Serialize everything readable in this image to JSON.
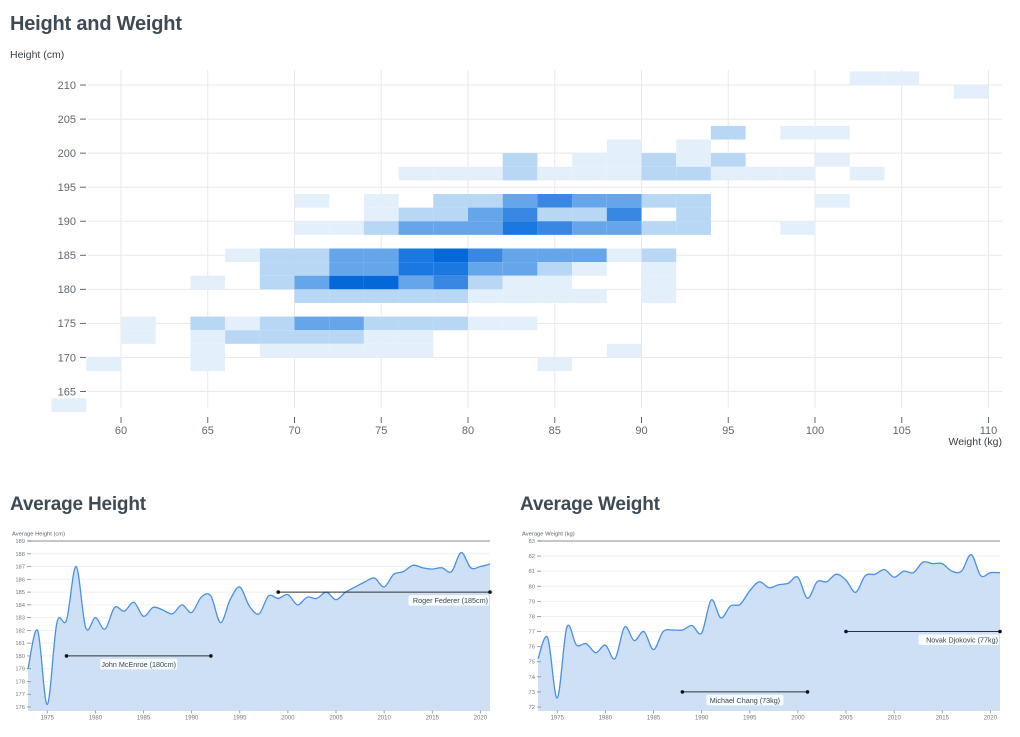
{
  "page": {
    "background": "#ffffff",
    "title_color": "#3e4a54"
  },
  "chart_data": [
    {
      "id": "height-weight",
      "type": "heatmap",
      "title": "Height and Weight",
      "xlabel": "Weight (kg)",
      "ylabel": "Height (cm)",
      "x_ticks": [
        60,
        65,
        70,
        75,
        80,
        85,
        90,
        95,
        100,
        105,
        110
      ],
      "y_ticks": [
        165,
        170,
        175,
        180,
        185,
        190,
        195,
        200,
        205,
        210
      ],
      "x_domain": [
        56,
        112
      ],
      "y_domain": [
        162,
        212
      ],
      "bin_size_kg": 2,
      "bin_size_cm": 2,
      "grid": true,
      "grid_color": "#e8e9ea",
      "tick_color": "#60686f",
      "palette": [
        "#e3f0fc",
        "#b7d7f5",
        "#65a6ea",
        "#3887e3",
        "#1b78e0",
        "#0568d9"
      ],
      "cells_format": "[weight_bin_start_kg, height_bin_start_cm, intensity_level_1_to_6]",
      "cells": [
        [
          102,
          210,
          1
        ],
        [
          104,
          210,
          1
        ],
        [
          108,
          208,
          1
        ],
        [
          94,
          202,
          2
        ],
        [
          98,
          202,
          1
        ],
        [
          100,
          202,
          1
        ],
        [
          88,
          200,
          1
        ],
        [
          92,
          200,
          1
        ],
        [
          82,
          198,
          2
        ],
        [
          86,
          198,
          1
        ],
        [
          88,
          198,
          1
        ],
        [
          90,
          198,
          2
        ],
        [
          92,
          198,
          1
        ],
        [
          94,
          198,
          2
        ],
        [
          100,
          198,
          1
        ],
        [
          76,
          196,
          1
        ],
        [
          78,
          196,
          1
        ],
        [
          80,
          196,
          1
        ],
        [
          82,
          196,
          2
        ],
        [
          84,
          196,
          1
        ],
        [
          86,
          196,
          1
        ],
        [
          88,
          196,
          1
        ],
        [
          90,
          196,
          2
        ],
        [
          92,
          196,
          2
        ],
        [
          94,
          196,
          1
        ],
        [
          96,
          196,
          1
        ],
        [
          98,
          196,
          1
        ],
        [
          102,
          196,
          1
        ],
        [
          70,
          192,
          1
        ],
        [
          74,
          192,
          1
        ],
        [
          78,
          192,
          2
        ],
        [
          80,
          192,
          2
        ],
        [
          82,
          192,
          3
        ],
        [
          84,
          192,
          4
        ],
        [
          86,
          192,
          3
        ],
        [
          88,
          192,
          3
        ],
        [
          90,
          192,
          2
        ],
        [
          92,
          192,
          2
        ],
        [
          100,
          192,
          1
        ],
        [
          74,
          190,
          1
        ],
        [
          76,
          190,
          2
        ],
        [
          78,
          190,
          2
        ],
        [
          80,
          190,
          3
        ],
        [
          82,
          190,
          4
        ],
        [
          84,
          190,
          2
        ],
        [
          86,
          190,
          2
        ],
        [
          88,
          190,
          4
        ],
        [
          92,
          190,
          2
        ],
        [
          70,
          188,
          1
        ],
        [
          72,
          188,
          1
        ],
        [
          74,
          188,
          2
        ],
        [
          76,
          188,
          3
        ],
        [
          78,
          188,
          3
        ],
        [
          80,
          188,
          3
        ],
        [
          82,
          188,
          5
        ],
        [
          84,
          188,
          4
        ],
        [
          86,
          188,
          3
        ],
        [
          88,
          188,
          3
        ],
        [
          90,
          188,
          2
        ],
        [
          92,
          188,
          2
        ],
        [
          98,
          188,
          1
        ],
        [
          66,
          184,
          1
        ],
        [
          68,
          184,
          2
        ],
        [
          70,
          184,
          2
        ],
        [
          72,
          184,
          3
        ],
        [
          74,
          184,
          3
        ],
        [
          76,
          184,
          5
        ],
        [
          78,
          184,
          6
        ],
        [
          80,
          184,
          4
        ],
        [
          82,
          184,
          3
        ],
        [
          84,
          184,
          3
        ],
        [
          86,
          184,
          3
        ],
        [
          88,
          184,
          1
        ],
        [
          90,
          184,
          2
        ],
        [
          68,
          182,
          2
        ],
        [
          70,
          182,
          2
        ],
        [
          72,
          182,
          3
        ],
        [
          74,
          182,
          3
        ],
        [
          76,
          182,
          5
        ],
        [
          78,
          182,
          5
        ],
        [
          80,
          182,
          3
        ],
        [
          82,
          182,
          3
        ],
        [
          84,
          182,
          2
        ],
        [
          86,
          182,
          1
        ],
        [
          90,
          182,
          1
        ],
        [
          64,
          180,
          1
        ],
        [
          68,
          180,
          2
        ],
        [
          70,
          180,
          3
        ],
        [
          72,
          180,
          6
        ],
        [
          74,
          180,
          6
        ],
        [
          76,
          180,
          3
        ],
        [
          78,
          180,
          4
        ],
        [
          80,
          180,
          2
        ],
        [
          82,
          180,
          1
        ],
        [
          84,
          180,
          1
        ],
        [
          90,
          180,
          1
        ],
        [
          70,
          178,
          2
        ],
        [
          72,
          178,
          2
        ],
        [
          74,
          178,
          2
        ],
        [
          76,
          178,
          2
        ],
        [
          78,
          178,
          2
        ],
        [
          80,
          178,
          1
        ],
        [
          82,
          178,
          1
        ],
        [
          84,
          178,
          1
        ],
        [
          86,
          178,
          1
        ],
        [
          90,
          178,
          1
        ],
        [
          60,
          174,
          1
        ],
        [
          64,
          174,
          2
        ],
        [
          66,
          174,
          1
        ],
        [
          68,
          174,
          2
        ],
        [
          70,
          174,
          3
        ],
        [
          72,
          174,
          3
        ],
        [
          74,
          174,
          2
        ],
        [
          76,
          174,
          2
        ],
        [
          78,
          174,
          2
        ],
        [
          80,
          174,
          1
        ],
        [
          82,
          174,
          1
        ],
        [
          60,
          172,
          1
        ],
        [
          64,
          172,
          1
        ],
        [
          66,
          172,
          2
        ],
        [
          68,
          172,
          2
        ],
        [
          70,
          172,
          2
        ],
        [
          72,
          172,
          2
        ],
        [
          74,
          172,
          1
        ],
        [
          76,
          172,
          1
        ],
        [
          64,
          170,
          1
        ],
        [
          68,
          170,
          1
        ],
        [
          70,
          170,
          1
        ],
        [
          72,
          170,
          1
        ],
        [
          74,
          170,
          1
        ],
        [
          76,
          170,
          1
        ],
        [
          88,
          170,
          1
        ],
        [
          58,
          168,
          1
        ],
        [
          64,
          168,
          1
        ],
        [
          84,
          168,
          1
        ],
        [
          56,
          162,
          1
        ]
      ]
    },
    {
      "id": "average-height",
      "type": "area",
      "title": "Average Height",
      "ylabel": "Average Height (cm)",
      "x_domain": [
        1973,
        2021
      ],
      "x_ticks": [
        1975,
        1980,
        1985,
        1990,
        1995,
        2000,
        2005,
        2010,
        2015,
        2020
      ],
      "y_ticks": [
        176,
        177,
        178,
        179,
        180,
        181,
        182,
        183,
        184,
        185,
        186,
        187,
        188,
        189
      ],
      "line_color": "#4a90e2",
      "fill_color": "#cde0f6",
      "top_line_color": "#b0b4b6",
      "values_start_year": 1973,
      "values": [
        179.0,
        182.0,
        176.2,
        182.6,
        182.8,
        187.0,
        182.2,
        183.0,
        182.1,
        183.8,
        183.5,
        184.2,
        183.1,
        183.8,
        183.6,
        183.3,
        184.0,
        183.4,
        184.6,
        184.7,
        182.6,
        184.4,
        185.4,
        183.9,
        183.3,
        184.7,
        184.5,
        184.8,
        184.0,
        184.6,
        184.5,
        185.0,
        184.4,
        185.0,
        185.4,
        185.8,
        186.1,
        185.4,
        186.4,
        186.6,
        187.1,
        186.9,
        186.8,
        186.9,
        186.6,
        188.1,
        186.9,
        187.0,
        187.2
      ],
      "annotations": [
        {
          "label": "John McEnroe (180cm)",
          "value": 180,
          "from": 1977,
          "to": 1992,
          "align": "center"
        },
        {
          "label": "Roger Federer (185cm)",
          "value": 185,
          "from": 1999,
          "to": 2021,
          "align": "right"
        }
      ]
    },
    {
      "id": "average-weight",
      "type": "area",
      "title": "Average Weight",
      "ylabel": "Average Weight (kg)",
      "x_domain": [
        1973,
        2021
      ],
      "x_ticks": [
        1975,
        1980,
        1985,
        1990,
        1995,
        2000,
        2005,
        2010,
        2015,
        2020
      ],
      "y_ticks": [
        72,
        73,
        74,
        75,
        76,
        77,
        78,
        79,
        80,
        81,
        82,
        83
      ],
      "line_color": "#4a90e2",
      "fill_color": "#cde0f6",
      "top_line_color": "#b0b4b6",
      "values_start_year": 1973,
      "values": [
        75.2,
        76.6,
        72.6,
        77.3,
        76.1,
        76.2,
        75.6,
        76.1,
        75.2,
        77.3,
        76.4,
        77.0,
        75.8,
        77.0,
        77.1,
        77.1,
        77.4,
        76.9,
        79.1,
        77.9,
        78.7,
        78.8,
        79.7,
        80.3,
        79.9,
        80.1,
        80.2,
        80.6,
        79.2,
        80.3,
        80.3,
        80.8,
        80.4,
        79.6,
        80.7,
        80.8,
        81.1,
        80.6,
        81.0,
        80.9,
        81.6,
        81.5,
        81.5,
        81.0,
        81.0,
        82.1,
        80.7,
        80.9,
        80.9
      ],
      "annotations": [
        {
          "label": "Michael Chang (73kg)",
          "value": 73,
          "from": 1988,
          "to": 2001,
          "align": "center"
        },
        {
          "label": "Novak Djokovic (77kg)",
          "value": 77,
          "from": 2005,
          "to": 2021,
          "align": "right"
        }
      ]
    }
  ]
}
